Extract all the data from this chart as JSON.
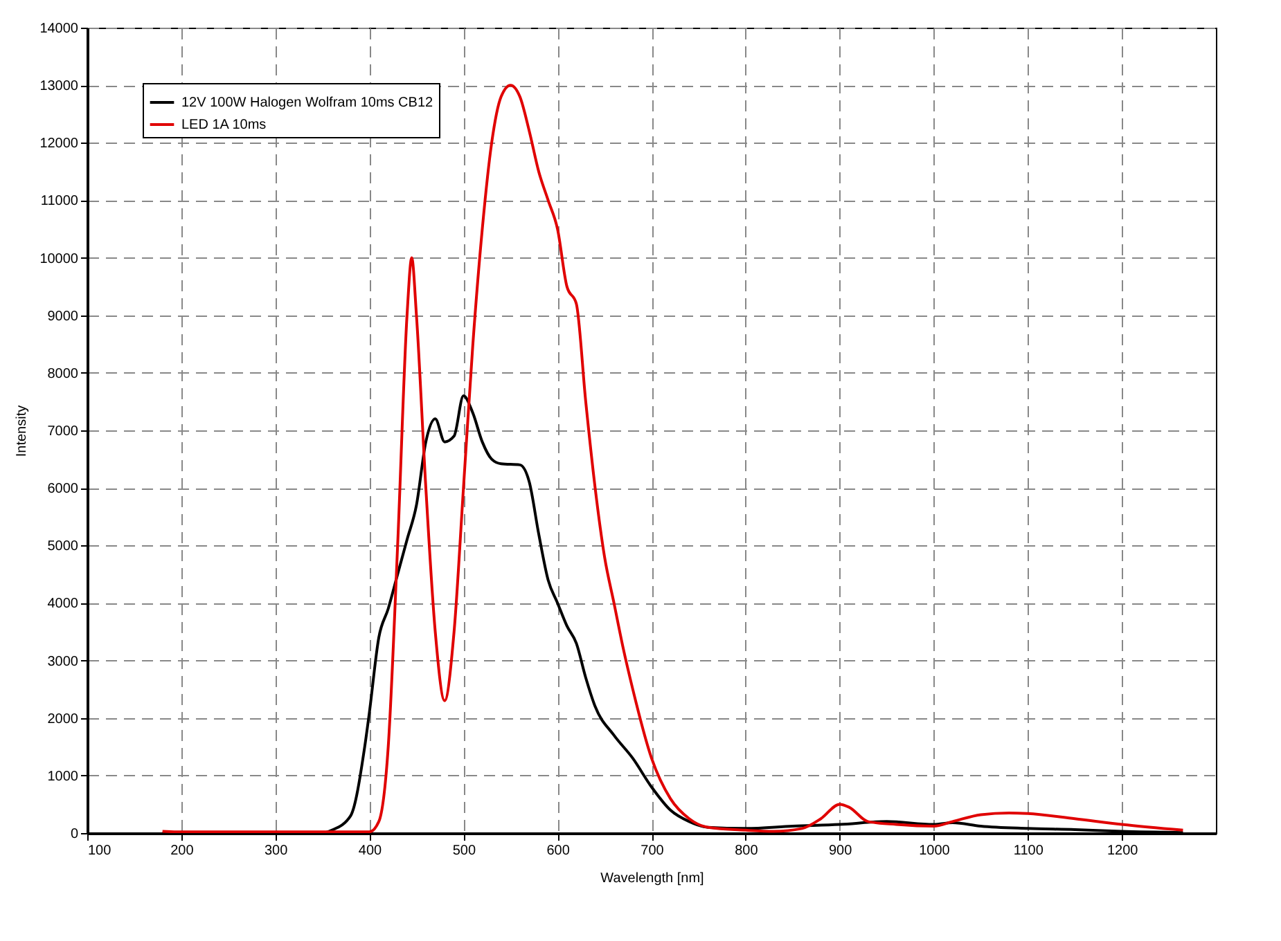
{
  "chart_data": {
    "type": "line",
    "xlabel": "Wavelength [nm]",
    "ylabel": "Intensity",
    "xlim": [
      100,
      1300
    ],
    "ylim": [
      0,
      14000
    ],
    "xticks": [
      100,
      200,
      300,
      400,
      500,
      600,
      700,
      800,
      900,
      1000,
      1100,
      1200
    ],
    "yticks": [
      0,
      1000,
      2000,
      3000,
      4000,
      5000,
      6000,
      7000,
      8000,
      9000,
      10000,
      11000,
      12000,
      13000,
      14000
    ],
    "grid": true,
    "legend": "top left",
    "x": [
      180,
      350,
      360,
      380,
      395,
      400,
      410,
      420,
      430,
      440,
      450,
      460,
      470,
      480,
      490,
      500,
      510,
      520,
      530,
      540,
      560,
      570,
      580,
      590,
      600,
      610,
      620,
      630,
      640,
      660,
      680,
      700,
      720,
      740,
      760,
      800,
      850,
      900,
      950,
      1000,
      1020,
      1050,
      1100,
      1150,
      1200,
      1265
    ],
    "series": [
      {
        "name": "12V 100W Halogen Wolfram 10ms CB12",
        "color": "#000000",
        "values": [
          0,
          0,
          50,
          300,
          1500,
          2100,
          3400,
          3900,
          4500,
          5100,
          5700,
          6800,
          7200,
          6800,
          6900,
          7600,
          7300,
          6800,
          6500,
          6420,
          6400,
          6100,
          5200,
          4400,
          4000,
          3600,
          3300,
          2700,
          2200,
          1700,
          1300,
          800,
          400,
          200,
          100,
          80,
          120,
          150,
          200,
          150,
          180,
          120,
          80,
          60,
          30,
          10
        ]
      },
      {
        "name": "LED 1A 10ms",
        "color": "#e00000",
        "x": [
          180,
          200,
          400,
          410,
          420,
          430,
          440,
          445,
          450,
          460,
          470,
          480,
          490,
          500,
          510,
          520,
          530,
          540,
          550,
          560,
          570,
          580,
          590,
          600,
          610,
          620,
          630,
          640,
          650,
          660,
          670,
          680,
          700,
          720,
          740,
          760,
          800,
          830,
          860,
          880,
          900,
          910,
          930,
          960,
          1000,
          1020,
          1050,
          1080,
          1100,
          1150,
          1200,
          1265
        ],
        "values": [
          30,
          20,
          20,
          200,
          1500,
          5000,
          9000,
          10000,
          9000,
          6000,
          3500,
          2300,
          3500,
          6000,
          8500,
          10500,
          12000,
          12800,
          13000,
          12800,
          12200,
          11500,
          11000,
          10500,
          9500,
          9200,
          7500,
          6000,
          4800,
          4000,
          3200,
          2500,
          1300,
          600,
          250,
          100,
          50,
          30,
          80,
          250,
          500,
          450,
          200,
          150,
          120,
          200,
          320,
          350,
          340,
          250,
          150,
          50
        ]
      }
    ]
  }
}
